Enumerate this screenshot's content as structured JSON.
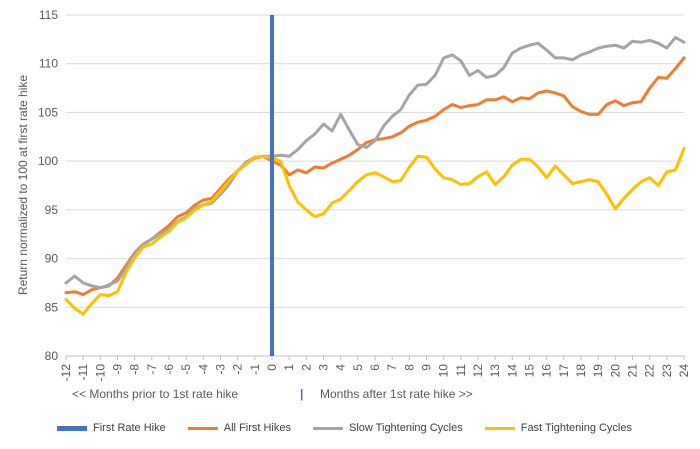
{
  "chart_data": {
    "type": "line",
    "title": "",
    "xlabel": "",
    "ylabel": "Return normalized to 100 at first rate hike",
    "ylim": [
      80,
      115
    ],
    "yticks": [
      80,
      85,
      90,
      95,
      100,
      105,
      110,
      115
    ],
    "xlim": [
      -12,
      24
    ],
    "xticks": [
      "-12",
      "-11",
      "-10",
      "-9",
      "-8",
      "-7",
      "-6",
      "-5",
      "-4",
      "-3",
      "-2",
      "-1",
      "0",
      "1",
      "2",
      "3",
      "4",
      "5",
      "6",
      "7",
      "8",
      "9",
      "10",
      "11",
      "12",
      "13",
      "14",
      "15",
      "16",
      "17",
      "18",
      "19",
      "20",
      "21",
      "22",
      "23",
      "24"
    ],
    "grid": "horizontal",
    "legend_position": "bottom",
    "annotations": {
      "before": "<<  Months prior to 1st rate hike",
      "divider": "|",
      "after": "Months after 1st rate hike  >>"
    },
    "marker": {
      "name": "First Rate Hike",
      "x": 0,
      "color": "#4472C4"
    },
    "series": [
      {
        "name": "All First Hikes",
        "color": "#ED7D31",
        "x": [
          -12,
          -11.5,
          -11,
          -10.5,
          -10,
          -9.5,
          -9,
          -8.5,
          -8,
          -7.5,
          -7,
          -6.5,
          -6,
          -5.5,
          -5,
          -4.5,
          -4,
          -3.5,
          -3,
          -2.5,
          -2,
          -1.5,
          -1,
          -0.5,
          0,
          0.5,
          1,
          1.5,
          2,
          2.5,
          3,
          3.5,
          4,
          4.5,
          5,
          5.5,
          6,
          6.5,
          7,
          7.5,
          8,
          8.5,
          9,
          9.5,
          10,
          10.5,
          11,
          11.5,
          12,
          12.5,
          13,
          13.5,
          14,
          14.5,
          15,
          15.5,
          16,
          16.5,
          17,
          17.5,
          18,
          18.5,
          19,
          19.5,
          20,
          20.5,
          21,
          21.5,
          22,
          22.5,
          23,
          23.5,
          24
        ],
        "values": [
          86.5,
          86.6,
          86.3,
          86.8,
          87,
          87.2,
          88,
          89.3,
          90.6,
          91.5,
          92,
          92.7,
          93.4,
          94.3,
          94.7,
          95.5,
          96,
          96.2,
          97.2,
          98.2,
          99,
          99.8,
          100.3,
          100.5,
          100,
          99.6,
          98.6,
          99.1,
          98.8,
          99.4,
          99.3,
          99.8,
          100.2,
          100.6,
          101.2,
          101.9,
          102.2,
          102.3,
          102.5,
          102.9,
          103.6,
          104,
          104.2,
          104.6,
          105.3,
          105.8,
          105.5,
          105.7,
          105.8,
          106.3,
          106.3,
          106.6,
          106.1,
          106.5,
          106.4,
          107,
          107.2,
          107,
          106.7,
          105.6,
          105.1,
          104.8,
          104.8,
          105.8,
          106.2,
          105.7,
          106,
          106.1,
          107.5,
          108.6,
          108.5,
          109.5,
          110.6
        ]
      },
      {
        "name": "Slow Tightening Cycles",
        "color": "#A5A5A5",
        "x": [
          -12,
          -11.5,
          -11,
          -10.5,
          -10,
          -9.5,
          -9,
          -8.5,
          -8,
          -7.5,
          -7,
          -6.5,
          -6,
          -5.5,
          -5,
          -4.5,
          -4,
          -3.5,
          -3,
          -2.5,
          -2,
          -1.5,
          -1,
          -0.5,
          0,
          0.5,
          1,
          1.5,
          2,
          2.5,
          3,
          3.5,
          4,
          4.5,
          5,
          5.5,
          6,
          6.5,
          7,
          7.5,
          8,
          8.5,
          9,
          9.5,
          10,
          10.5,
          11,
          11.5,
          12,
          12.5,
          13,
          13.5,
          14,
          14.5,
          15,
          15.5,
          16,
          16.5,
          17,
          17.5,
          18,
          18.5,
          19,
          19.5,
          20,
          20.5,
          21,
          21.5,
          22,
          22.5,
          23,
          23.5,
          24
        ],
        "values": [
          87.5,
          88.2,
          87.5,
          87.2,
          87,
          87.3,
          87.7,
          89,
          90.5,
          91.4,
          92,
          92.5,
          93,
          93.8,
          94.3,
          95.2,
          95.5,
          95.7,
          96.6,
          97.6,
          99,
          99.9,
          100.4,
          100.5,
          100.5,
          100.6,
          100.5,
          101.2,
          102.1,
          102.8,
          103.8,
          103.1,
          104.8,
          103.2,
          101.7,
          101.4,
          102.1,
          103.6,
          104.6,
          105.3,
          106.8,
          107.8,
          107.9,
          108.8,
          110.6,
          110.9,
          110.3,
          108.8,
          109.3,
          108.6,
          108.8,
          109.6,
          111.1,
          111.6,
          111.9,
          112.1,
          111.4,
          110.6,
          110.6,
          110.4,
          110.9,
          111.2,
          111.6,
          111.8,
          111.9,
          111.6,
          112.3,
          112.2,
          112.4,
          112.1,
          111.6,
          112.7,
          112.2
        ]
      },
      {
        "name": "Fast Tightening Cycles",
        "color": "#FFC000",
        "x": [
          -12,
          -11.5,
          -11,
          -10.5,
          -10,
          -9.5,
          -9,
          -8.5,
          -8,
          -7.5,
          -7,
          -6.5,
          -6,
          -5.5,
          -5,
          -4.5,
          -4,
          -3.5,
          -3,
          -2.5,
          -2,
          -1.5,
          -1,
          -0.5,
          0,
          0.5,
          1,
          1.5,
          2,
          2.5,
          3,
          3.5,
          4,
          4.5,
          5,
          5.5,
          6,
          6.5,
          7,
          7.5,
          8,
          8.5,
          9,
          9.5,
          10,
          10.5,
          11,
          11.5,
          12,
          12.5,
          13,
          13.5,
          14,
          14.5,
          15,
          15.5,
          16,
          16.5,
          17,
          17.5,
          18,
          18.5,
          19,
          19.5,
          20,
          20.5,
          21,
          21.5,
          22,
          22.5,
          23,
          23.5,
          24
        ],
        "values": [
          85.8,
          84.9,
          84.3,
          85.4,
          86.3,
          86.2,
          86.6,
          88.6,
          90.1,
          91.2,
          91.5,
          92.2,
          92.8,
          93.7,
          94.2,
          95,
          95.5,
          95.9,
          96.9,
          98,
          99,
          99.7,
          100.4,
          100.5,
          100.3,
          100,
          97.5,
          95.8,
          95,
          94.3,
          94.6,
          95.7,
          96.1,
          97,
          97.9,
          98.6,
          98.8,
          98.4,
          97.9,
          98,
          99.4,
          100.5,
          100.4,
          99.2,
          98.3,
          98.1,
          97.6,
          97.7,
          98.4,
          98.9,
          97.6,
          98.4,
          99.6,
          100.2,
          100.2,
          99.4,
          98.3,
          99.5,
          98.6,
          97.7,
          97.9,
          98.1,
          97.9,
          96.6,
          95.1,
          96.2,
          97.1,
          97.9,
          98.3,
          97.5,
          98.9,
          99.1,
          101.3
        ]
      }
    ]
  },
  "legend": {
    "items": [
      {
        "label": "First Rate Hike",
        "color": "#4472C4"
      },
      {
        "label": "All First Hikes",
        "color": "#ED7D31"
      },
      {
        "label": "Slow Tightening Cycles",
        "color": "#A5A5A5"
      },
      {
        "label": "Fast Tightening Cycles",
        "color": "#FFC000"
      }
    ]
  }
}
